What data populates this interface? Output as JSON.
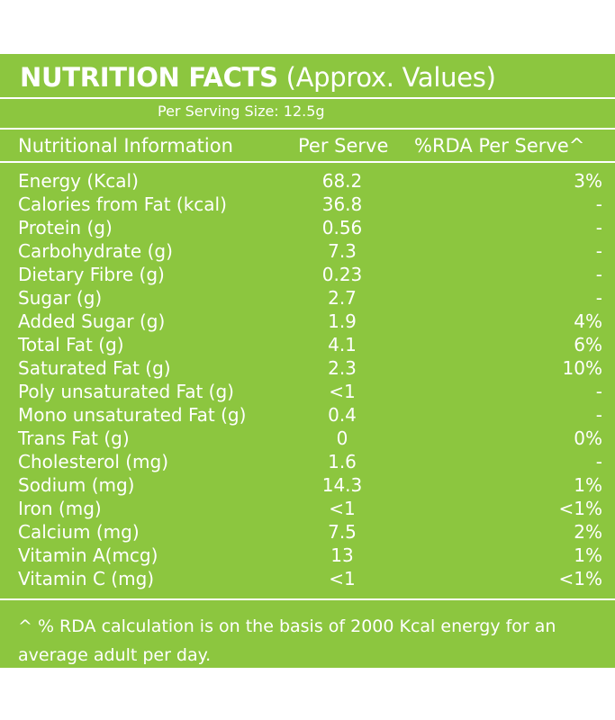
{
  "panel": {
    "title_bold": "NUTRITION FACTS",
    "title_rest": " (Approx. Values)",
    "serving_size": "Per Serving Size: 12.5g",
    "headers": [
      "Nutritional Information",
      "Per Serve",
      "%RDA Per Serve^"
    ],
    "rows": [
      {
        "name": "Energy (Kcal)",
        "serve": "68.2",
        "rda": "3%"
      },
      {
        "name": "Calories from Fat (kcal)",
        "serve": "36.8",
        "rda": "-"
      },
      {
        "name": "Protein (g)",
        "serve": "0.56",
        "rda": "-"
      },
      {
        "name": "Carbohydrate (g)",
        "serve": "7.3",
        "rda": "-"
      },
      {
        "name": "Dietary Fibre (g)",
        "serve": "0.23",
        "rda": "-"
      },
      {
        "name": "Sugar (g)",
        "serve": "2.7",
        "rda": "-"
      },
      {
        "name": "Added Sugar (g)",
        "serve": "1.9",
        "rda": "4%"
      },
      {
        "name": "Total Fat (g)",
        "serve": "4.1",
        "rda": "6%"
      },
      {
        "name": "Saturated Fat (g)",
        "serve": "2.3",
        "rda": "10%"
      },
      {
        "name": "Poly unsaturated Fat (g)",
        "serve": "<1",
        "rda": "-"
      },
      {
        "name": "Mono unsaturated Fat (g)",
        "serve": "0.4",
        "rda": "-"
      },
      {
        "name": "Trans Fat (g)",
        "serve": "0",
        "rda": "0%"
      },
      {
        "name": "Cholesterol (mg)",
        "serve": "1.6",
        "rda": "-"
      },
      {
        "name": "Sodium (mg)",
        "serve": "14.3",
        "rda": "1%"
      },
      {
        "name": "Iron (mg)",
        "serve": "<1",
        "rda": "<1%"
      },
      {
        "name": "Calcium (mg)",
        "serve": "7.5",
        "rda": "2%"
      },
      {
        "name": "Vitamin A(mcg)",
        "serve": "13",
        "rda": "1%"
      },
      {
        "name": "Vitamin C (mg)",
        "serve": "<1",
        "rda": "<1%"
      }
    ],
    "footnote": "^ % RDA calculation is on the basis of 2000 Kcal energy for an average adult per day."
  },
  "colors": {
    "panel_green": "#8cc63f",
    "text": "#ffffff",
    "page_background": "#ffffff"
  }
}
